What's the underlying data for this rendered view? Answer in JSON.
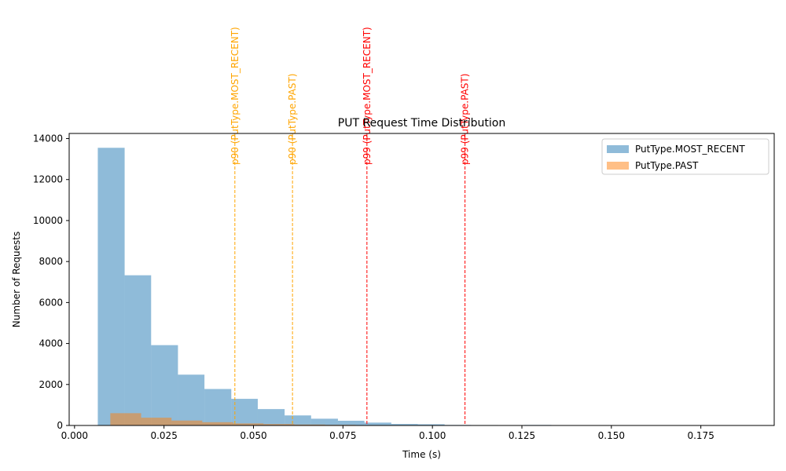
{
  "chart_data": {
    "type": "bar",
    "title": "PUT Request Time Distribution",
    "xlabel": "Time (s)",
    "ylabel": "Number of Requests",
    "xlim": [
      -0.0015,
      0.1955
    ],
    "ylim": [
      0,
      14250
    ],
    "xticks": [
      0.0,
      0.025,
      0.05,
      0.075,
      0.1,
      0.125,
      0.15,
      0.175
    ],
    "xtick_labels": [
      "0.000",
      "0.025",
      "0.050",
      "0.075",
      "0.100",
      "0.125",
      "0.150",
      "0.175"
    ],
    "yticks": [
      0,
      2000,
      4000,
      6000,
      8000,
      10000,
      12000,
      14000
    ],
    "ytick_labels": [
      "0",
      "2000",
      "4000",
      "6000",
      "8000",
      "10000",
      "12000",
      "14000"
    ],
    "grid": false,
    "legend_position": "top-right",
    "series": [
      {
        "name": "PutType.MOST_RECENT",
        "color": "#1f77b4",
        "opacity": 0.5,
        "bins": [
          [
            0.0065,
            0.014,
            13550
          ],
          [
            0.014,
            0.0214,
            7330
          ],
          [
            0.0214,
            0.0289,
            3920
          ],
          [
            0.0289,
            0.0363,
            2480
          ],
          [
            0.0363,
            0.0438,
            1780
          ],
          [
            0.0438,
            0.0512,
            1300
          ],
          [
            0.0512,
            0.0587,
            800
          ],
          [
            0.0587,
            0.0661,
            490
          ],
          [
            0.0661,
            0.0736,
            330
          ],
          [
            0.0736,
            0.081,
            230
          ],
          [
            0.081,
            0.0885,
            140
          ],
          [
            0.0885,
            0.0959,
            75
          ],
          [
            0.0959,
            0.1034,
            60
          ],
          [
            0.1034,
            0.1108,
            25
          ],
          [
            0.1108,
            0.1183,
            20
          ],
          [
            0.1183,
            0.1257,
            8
          ],
          [
            0.1257,
            0.1332,
            25
          ],
          [
            0.1332,
            0.1406,
            5
          ],
          [
            0.1406,
            0.1481,
            4
          ],
          [
            0.1481,
            0.1555,
            3
          ],
          [
            0.1555,
            0.163,
            2
          ],
          [
            0.163,
            0.1704,
            2
          ],
          [
            0.1704,
            0.1779,
            1
          ],
          [
            0.1779,
            0.1853,
            1
          ]
        ]
      },
      {
        "name": "PutType.PAST",
        "color": "#ff7f0e",
        "opacity": 0.5,
        "bins": [
          [
            0.01,
            0.0186,
            600
          ],
          [
            0.0186,
            0.0271,
            380
          ],
          [
            0.0271,
            0.0357,
            240
          ],
          [
            0.0357,
            0.0443,
            160
          ],
          [
            0.0443,
            0.0528,
            100
          ],
          [
            0.0528,
            0.0614,
            70
          ],
          [
            0.0614,
            0.07,
            45
          ],
          [
            0.07,
            0.0785,
            30
          ],
          [
            0.0785,
            0.0871,
            20
          ],
          [
            0.0871,
            0.0957,
            15
          ],
          [
            0.0957,
            0.1042,
            10
          ],
          [
            0.1042,
            0.1128,
            8
          ],
          [
            0.1128,
            0.1214,
            5
          ]
        ]
      }
    ],
    "vlines": [
      {
        "x": 0.0448,
        "label": "p90 (PutType.MOST_RECENT)",
        "color": "#ffa500"
      },
      {
        "x": 0.0609,
        "label": "p90 (PutType.PAST)",
        "color": "#ffa500"
      },
      {
        "x": 0.0817,
        "label": "p99 (PutType.MOST_RECENT)",
        "color": "#ff0000"
      },
      {
        "x": 0.1091,
        "label": "p99 (PutType.PAST)",
        "color": "#ff0000"
      }
    ]
  }
}
